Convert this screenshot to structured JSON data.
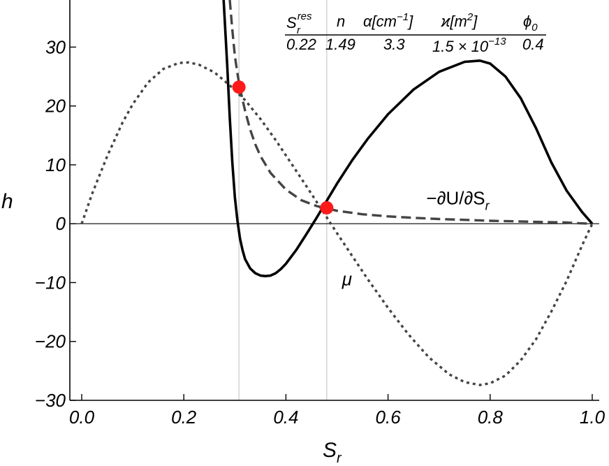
{
  "chart_data": {
    "type": "line",
    "xlabel": "S",
    "xlabel_sub": "r",
    "ylabel": "h",
    "xlim": [
      0.0,
      1.0
    ],
    "ylim": [
      -30,
      38
    ],
    "x_ticks": [
      {
        "value": 0.0,
        "label": "0.0"
      },
      {
        "value": 0.2,
        "label": "0.2"
      },
      {
        "value": 0.4,
        "label": "0.4"
      },
      {
        "value": 0.6,
        "label": "0.6"
      },
      {
        "value": 0.8,
        "label": "0.8"
      },
      {
        "value": 1.0,
        "label": "1.0"
      }
    ],
    "y_ticks": [
      {
        "value": -30,
        "label": "−30"
      },
      {
        "value": -20,
        "label": "−20"
      },
      {
        "value": -10,
        "label": "−10"
      },
      {
        "value": 0,
        "label": "0"
      },
      {
        "value": 10,
        "label": "10"
      },
      {
        "value": 20,
        "label": "20"
      },
      {
        "value": 30,
        "label": "30"
      }
    ],
    "series": [
      {
        "name": "",
        "style": "solid",
        "color": "#000000",
        "x": [
          0.278,
          0.285,
          0.29,
          0.295,
          0.3,
          0.305,
          0.31,
          0.315,
          0.32,
          0.33,
          0.34,
          0.35,
          0.36,
          0.37,
          0.38,
          0.39,
          0.4,
          0.42,
          0.44,
          0.46,
          0.48,
          0.5,
          0.53,
          0.56,
          0.6,
          0.65,
          0.7,
          0.75,
          0.78,
          0.8,
          0.83,
          0.86,
          0.89,
          0.92,
          0.95,
          0.98,
          1.0
        ],
        "y": [
          38,
          27,
          18,
          10.5,
          4.5,
          0.5,
          -2.5,
          -4.5,
          -6,
          -7.6,
          -8.4,
          -8.8,
          -8.9,
          -8.8,
          -8.4,
          -7.7,
          -6.8,
          -4.5,
          -1.8,
          1.0,
          3.9,
          6.8,
          10.8,
          14.4,
          18.6,
          22.8,
          25.8,
          27.5,
          27.7,
          27.2,
          25,
          21.3,
          16.2,
          10.4,
          5.6,
          2.0,
          0
        ]
      },
      {
        "name": "−∂U/∂S",
        "name_sub": "r",
        "style": "dashed",
        "color": "#444444",
        "x": [
          0.29,
          0.295,
          0.3,
          0.305,
          0.31,
          0.32,
          0.33,
          0.34,
          0.35,
          0.37,
          0.4,
          0.43,
          0.46,
          0.48,
          0.5,
          0.55,
          0.6,
          0.65,
          0.7,
          0.75,
          0.8,
          0.85,
          0.9,
          0.95,
          0.97,
          1.0
        ],
        "y": [
          38,
          33,
          28.5,
          25.5,
          23.0,
          19.2,
          16.0,
          13.5,
          11.5,
          8.6,
          5.8,
          4.0,
          3.0,
          2.6,
          2.2,
          1.6,
          1.25,
          1.0,
          0.8,
          0.65,
          0.5,
          0.4,
          0.3,
          0.2,
          0.1,
          0
        ]
      },
      {
        "name": "μ",
        "style": "dotted",
        "color": "#444444",
        "x": [
          0.0,
          0.02,
          0.05,
          0.08,
          0.1,
          0.13,
          0.16,
          0.19,
          0.21,
          0.23,
          0.26,
          0.29,
          0.32,
          0.35,
          0.38,
          0.41,
          0.44,
          0.47,
          0.5,
          0.53,
          0.56,
          0.6,
          0.64,
          0.68,
          0.72,
          0.75,
          0.78,
          0.8,
          0.83,
          0.86,
          0.89,
          0.92,
          0.95,
          0.98,
          1.0
        ],
        "y": [
          0,
          5.0,
          11.5,
          17.2,
          20.3,
          24.0,
          26.3,
          27.3,
          27.4,
          27.0,
          25.7,
          23.5,
          21.0,
          17.8,
          14.2,
          10.3,
          6.4,
          2.4,
          -1.6,
          -5.5,
          -9.4,
          -14.3,
          -18.8,
          -22.7,
          -25.6,
          -26.9,
          -27.4,
          -27.1,
          -25.8,
          -23.2,
          -19.6,
          -14.9,
          -9.7,
          -3.7,
          0
        ]
      }
    ],
    "vertical_lines": [
      0.308,
      0.48
    ],
    "points": [
      {
        "x": 0.308,
        "y": 23.2,
        "color": "#ff1a1a"
      },
      {
        "x": 0.48,
        "y": 2.7,
        "color": "#ff1a1a"
      }
    ],
    "annotations": [
      {
        "text": "−∂U/∂S",
        "sub": "r",
        "x": 0.675,
        "y": 3.3
      },
      {
        "text": "μ",
        "x": 0.51,
        "y": -10.5
      }
    ],
    "param_table": {
      "columns": [
        {
          "header": "S",
          "header_sup": "res",
          "header_sub": "r",
          "value": "0.22"
        },
        {
          "header": "n",
          "value": "1.49"
        },
        {
          "header": "α[cm",
          "header_sup": "−1",
          "header_tail": "]",
          "value": "3.3"
        },
        {
          "header": "ϰ[m",
          "header_sup": "2",
          "header_tail": "]",
          "value": "1.5 × 10",
          "value_sup": "−13"
        },
        {
          "header": "ϕ",
          "header_sub": "0",
          "value": "0.4"
        }
      ]
    }
  }
}
